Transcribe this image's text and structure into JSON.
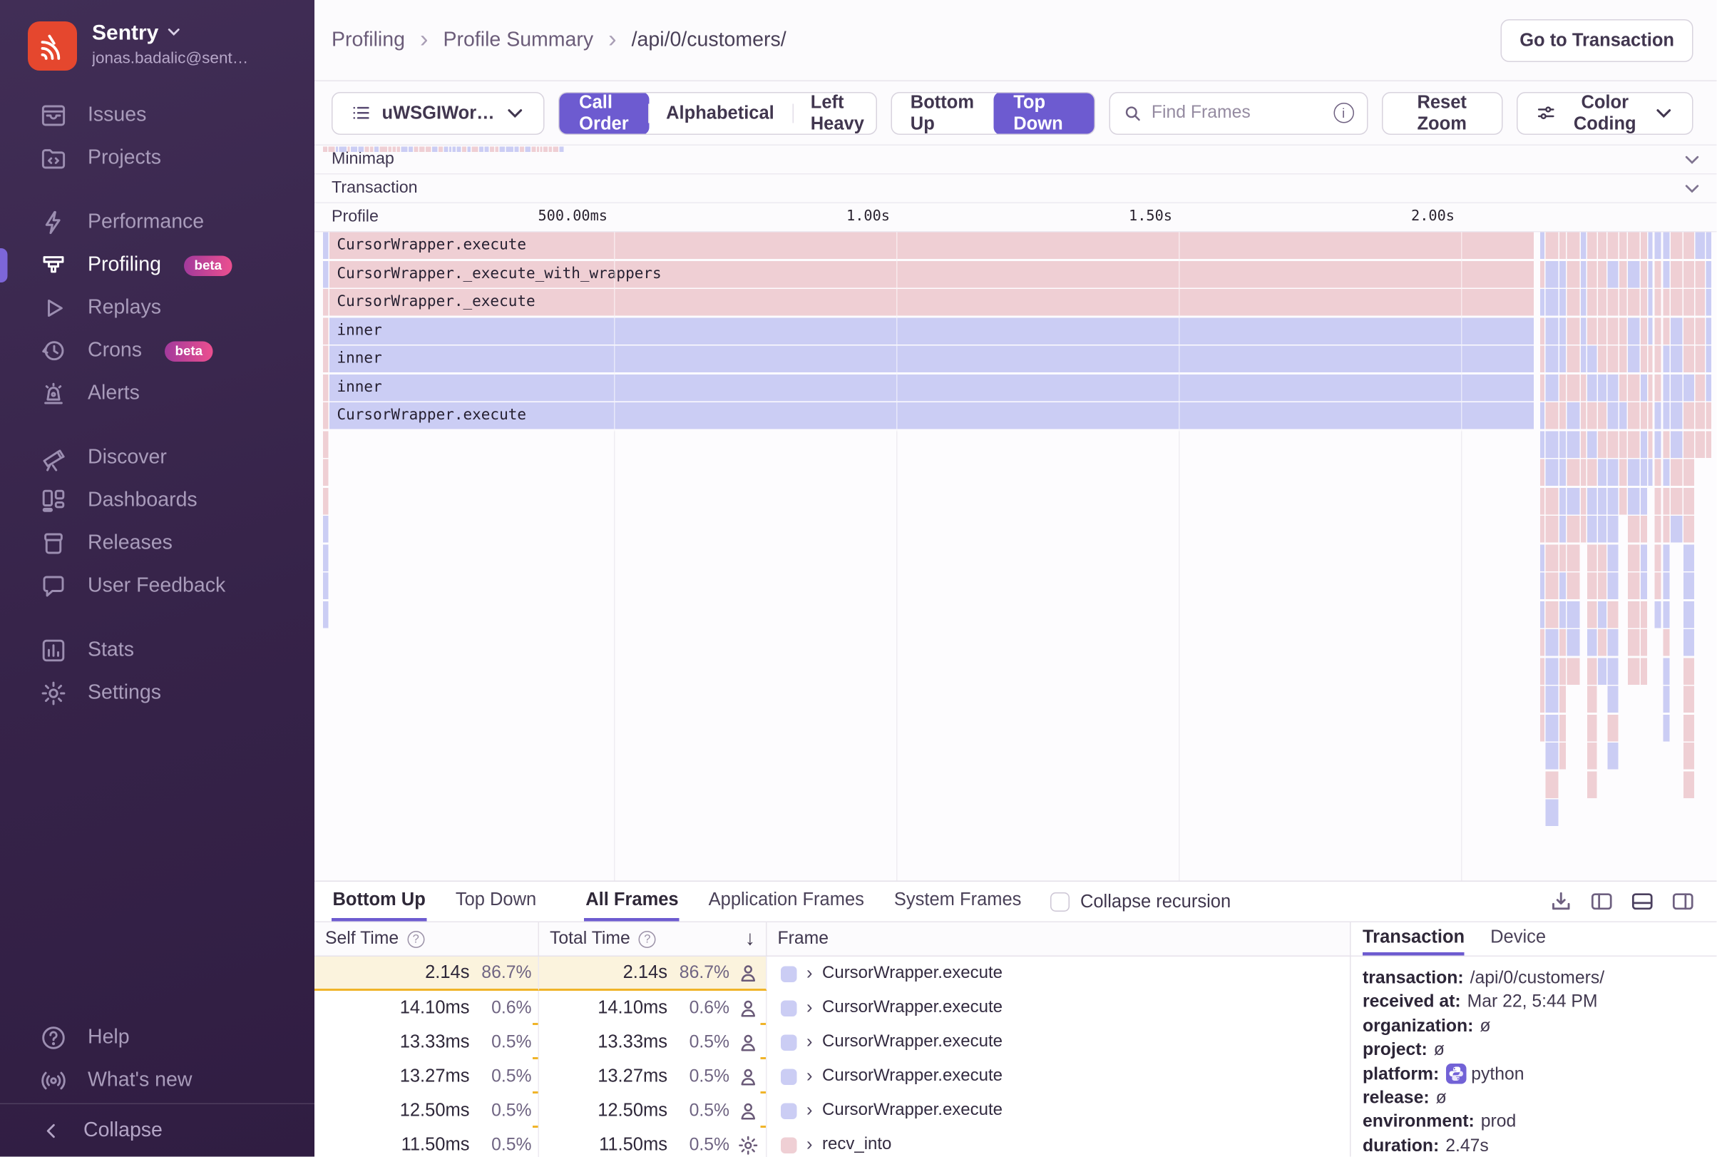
{
  "sidebar": {
    "brand": {
      "name": "Sentry",
      "email": "jonas.badalic@sent…"
    },
    "groups": [
      {
        "items": [
          {
            "label": "Issues",
            "icon": "issues"
          },
          {
            "label": "Projects",
            "icon": "projects"
          }
        ]
      },
      {
        "items": [
          {
            "label": "Performance",
            "icon": "performance"
          },
          {
            "label": "Profiling",
            "icon": "profiling",
            "badge": "beta",
            "active": true
          },
          {
            "label": "Replays",
            "icon": "replays"
          },
          {
            "label": "Crons",
            "icon": "crons",
            "badge": "beta"
          },
          {
            "label": "Alerts",
            "icon": "alerts"
          }
        ]
      },
      {
        "items": [
          {
            "label": "Discover",
            "icon": "discover"
          },
          {
            "label": "Dashboards",
            "icon": "dashboards"
          },
          {
            "label": "Releases",
            "icon": "releases"
          },
          {
            "label": "User Feedback",
            "icon": "user-feedback"
          }
        ]
      },
      {
        "items": [
          {
            "label": "Stats",
            "icon": "stats"
          },
          {
            "label": "Settings",
            "icon": "settings"
          }
        ]
      }
    ],
    "footer_items": [
      {
        "label": "Help",
        "icon": "help"
      },
      {
        "label": "What's new",
        "icon": "whats-new"
      }
    ],
    "collapse_label": "Collapse"
  },
  "header": {
    "breadcrumbs": [
      "Profiling",
      "Profile Summary",
      "/api/0/customers/"
    ],
    "separator": "›",
    "action_label": "Go to Transaction"
  },
  "toolbar": {
    "thread_selector": "uWSGIWor…",
    "sort_options": [
      "Call Order",
      "Alphabetical",
      "Left Heavy"
    ],
    "sort_active": "Call Order",
    "direction_options": [
      "Bottom Up",
      "Top Down"
    ],
    "direction_active": "Top Down",
    "search_placeholder": "Find Frames",
    "reset_zoom_label": "Reset Zoom",
    "color_coding_label": "Color Coding"
  },
  "flamegraph": {
    "lanes": [
      "Minimap",
      "Transaction",
      "Profile"
    ],
    "time_ticks": [
      "500.00ms",
      "1.00s",
      "1.50s",
      "2.00s"
    ],
    "frames": [
      {
        "name": "CursorWrapper.execute",
        "type": "system"
      },
      {
        "name": "CursorWrapper._execute_with_wrappers",
        "type": "system"
      },
      {
        "name": "CursorWrapper._execute",
        "type": "system"
      },
      {
        "name": "inner",
        "type": "app"
      },
      {
        "name": "inner",
        "type": "app"
      },
      {
        "name": "inner",
        "type": "app"
      },
      {
        "name": "CursorWrapper.execute",
        "type": "app"
      }
    ],
    "left_edge_rows": [
      "app",
      "app",
      "system",
      "system",
      "system",
      "system",
      "system",
      "system",
      "system",
      "system",
      "app",
      "app",
      "app",
      "app"
    ],
    "colors": {
      "system": "#efcfd4",
      "app": "#cbcdf4"
    }
  },
  "bottom": {
    "view_tabs": [
      {
        "label": "Bottom Up",
        "active": true
      },
      {
        "label": "Top Down",
        "active": false
      }
    ],
    "frame_tabs": [
      {
        "label": "All Frames",
        "active": true
      },
      {
        "label": "Application Frames",
        "active": false
      },
      {
        "label": "System Frames",
        "active": false
      }
    ],
    "collapse_recursion_label": "Collapse recursion",
    "table": {
      "columns": [
        "Self Time",
        "Total Time",
        "Frame"
      ],
      "rows": [
        {
          "self": "2.14s",
          "self_pct": "86.7%",
          "total": "2.14s",
          "total_pct": "86.7%",
          "icon": "user",
          "swatch": "app",
          "frame": "CursorWrapper.execute",
          "highlight": true
        },
        {
          "self": "14.10ms",
          "self_pct": "0.6%",
          "total": "14.10ms",
          "total_pct": "0.6%",
          "icon": "user",
          "swatch": "app",
          "frame": "CursorWrapper.execute",
          "highlight": false
        },
        {
          "self": "13.33ms",
          "self_pct": "0.5%",
          "total": "13.33ms",
          "total_pct": "0.5%",
          "icon": "user",
          "swatch": "app",
          "frame": "CursorWrapper.execute",
          "highlight": false
        },
        {
          "self": "13.27ms",
          "self_pct": "0.5%",
          "total": "13.27ms",
          "total_pct": "0.5%",
          "icon": "user",
          "swatch": "app",
          "frame": "CursorWrapper.execute",
          "highlight": false
        },
        {
          "self": "12.50ms",
          "self_pct": "0.5%",
          "total": "12.50ms",
          "total_pct": "0.5%",
          "icon": "user",
          "swatch": "app",
          "frame": "CursorWrapper.execute",
          "highlight": false
        },
        {
          "self": "11.50ms",
          "self_pct": "0.5%",
          "total": "11.50ms",
          "total_pct": "0.5%",
          "icon": "gear",
          "swatch": "system",
          "frame": "recv_into",
          "highlight": false
        }
      ]
    },
    "details": {
      "tabs": [
        {
          "label": "Transaction",
          "active": true
        },
        {
          "label": "Device",
          "active": false
        }
      ],
      "fields": [
        {
          "key": "transaction:",
          "value": "/api/0/customers/"
        },
        {
          "key": "received at:",
          "value": "Mar 22, 5:44 PM"
        },
        {
          "key": "organization:",
          "value": "ø"
        },
        {
          "key": "project:",
          "value": "ø"
        },
        {
          "key": "platform:",
          "value": "python",
          "icon": "python"
        },
        {
          "key": "release:",
          "value": "ø"
        },
        {
          "key": "environment:",
          "value": "prod"
        },
        {
          "key": "duration:",
          "value": "2.47s"
        }
      ]
    }
  },
  "glyphs": {
    "question": "?",
    "info": "i",
    "sort_down": "↓",
    "frame_chevron": "›"
  }
}
